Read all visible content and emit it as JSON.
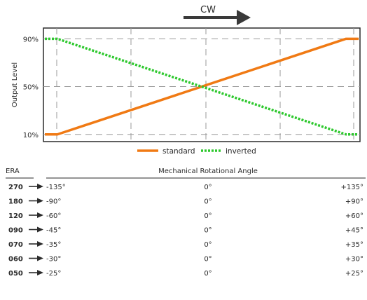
{
  "direction_label": "CW",
  "chart_data": {
    "type": "line",
    "ylabel": "Output Level",
    "x": [
      -1.0,
      -0.92,
      0.92,
      1.0
    ],
    "series": [
      {
        "name": "standard",
        "color": "#f07a14",
        "values": [
          10,
          10,
          90,
          90
        ]
      },
      {
        "name": "inverted",
        "color": "#2ec82e",
        "values": [
          90,
          90,
          10,
          10
        ]
      }
    ],
    "yticks": [
      "10%",
      "50%",
      "90%"
    ],
    "ytick_values": [
      10,
      50,
      90
    ],
    "ylim": [
      4,
      99
    ],
    "xlim": [
      -1.0,
      1.0
    ],
    "grid": true,
    "legend": "bottom-center"
  },
  "table": {
    "era_header": "ERA",
    "angle_header": "Mechanical Rotational Angle",
    "rows": [
      {
        "era": "270",
        "left": "-135°",
        "center": "0°",
        "right": "+135°"
      },
      {
        "era": "180",
        "left": "-90°",
        "center": "0°",
        "right": "+90°"
      },
      {
        "era": "120",
        "left": "-60°",
        "center": "0°",
        "right": "+60°"
      },
      {
        "era": "090",
        "left": "-45°",
        "center": "0°",
        "right": "+45°"
      },
      {
        "era": "070",
        "left": "-35°",
        "center": "0°",
        "right": "+35°"
      },
      {
        "era": "060",
        "left": "-30°",
        "center": "0°",
        "right": "+30°"
      },
      {
        "era": "050",
        "left": "-25°",
        "center": "0°",
        "right": "+25°"
      }
    ]
  }
}
